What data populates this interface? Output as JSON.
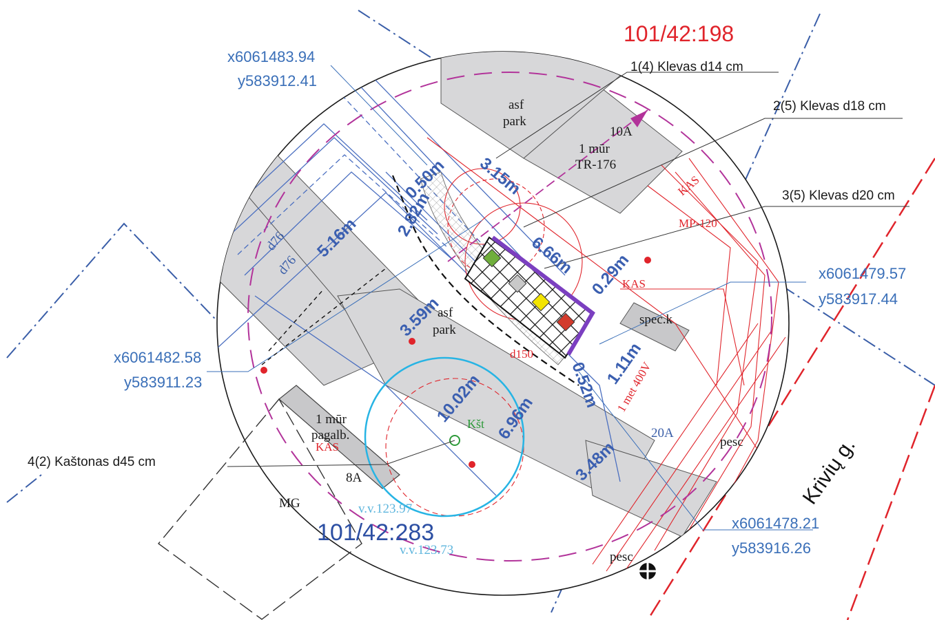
{
  "parcels": {
    "north": "101/42:198",
    "south": "101/42:283"
  },
  "trees": [
    {
      "label": "1(4) Klevas d14 cm"
    },
    {
      "label": "2(5) Klevas d18 cm"
    },
    {
      "label": "3(5) Klevas d20 cm"
    },
    {
      "label": "4(2) Kaštonas d45 cm"
    }
  ],
  "coordinates": [
    {
      "x": "x6061483.94",
      "y": "y583912.41"
    },
    {
      "x": "x6061479.57",
      "y": "y583917.44"
    },
    {
      "x": "x6061482.58",
      "y": "y583911.23"
    },
    {
      "x": "x6061478.21",
      "y": "y583916.26"
    }
  ],
  "dimensions": [
    "5.16m",
    "0.50m",
    "2.82m",
    "3.15m",
    "6.66m",
    "0.29m",
    "3.59m",
    "1.11m",
    "10.02m",
    "6.96m",
    "0.52m",
    "3.48m"
  ],
  "buildings": {
    "b10a": "10A",
    "b10a_sub": "1 mūr",
    "tr": "TR-176",
    "b8a": "8A",
    "b8a_sub": "1 mūr",
    "b8a_sub2": "pagalb.",
    "b20a": "20A",
    "mg": "MG"
  },
  "parking": {
    "north_1": "asf",
    "north_2": "park",
    "center_1": "asf",
    "center_2": "park"
  },
  "utilities": {
    "kas_1": "KAS",
    "kas_2": "KAS",
    "kas_3": "KAS",
    "mp": "MP-120",
    "spec": "spec.k",
    "d76_a": "d76",
    "d76_b": "d76",
    "cable": "1 met 400V",
    "d150": "d150",
    "pesc_1": "pesc",
    "pesc_2": "pesc"
  },
  "elevations": {
    "vv1": "v.v.123.97",
    "vv2": "v.v.123.73"
  },
  "vegetation": {
    "kst": "Kšt"
  },
  "street": "Krivių g.",
  "colors": {
    "parcel_red": "#e0242b",
    "parcel_blue": "#2c4fa3",
    "coord_blue": "#3a6fb8",
    "building_gray": "#d7d7d9",
    "purple": "#7b3fc0",
    "cyan": "#27b4e4"
  }
}
